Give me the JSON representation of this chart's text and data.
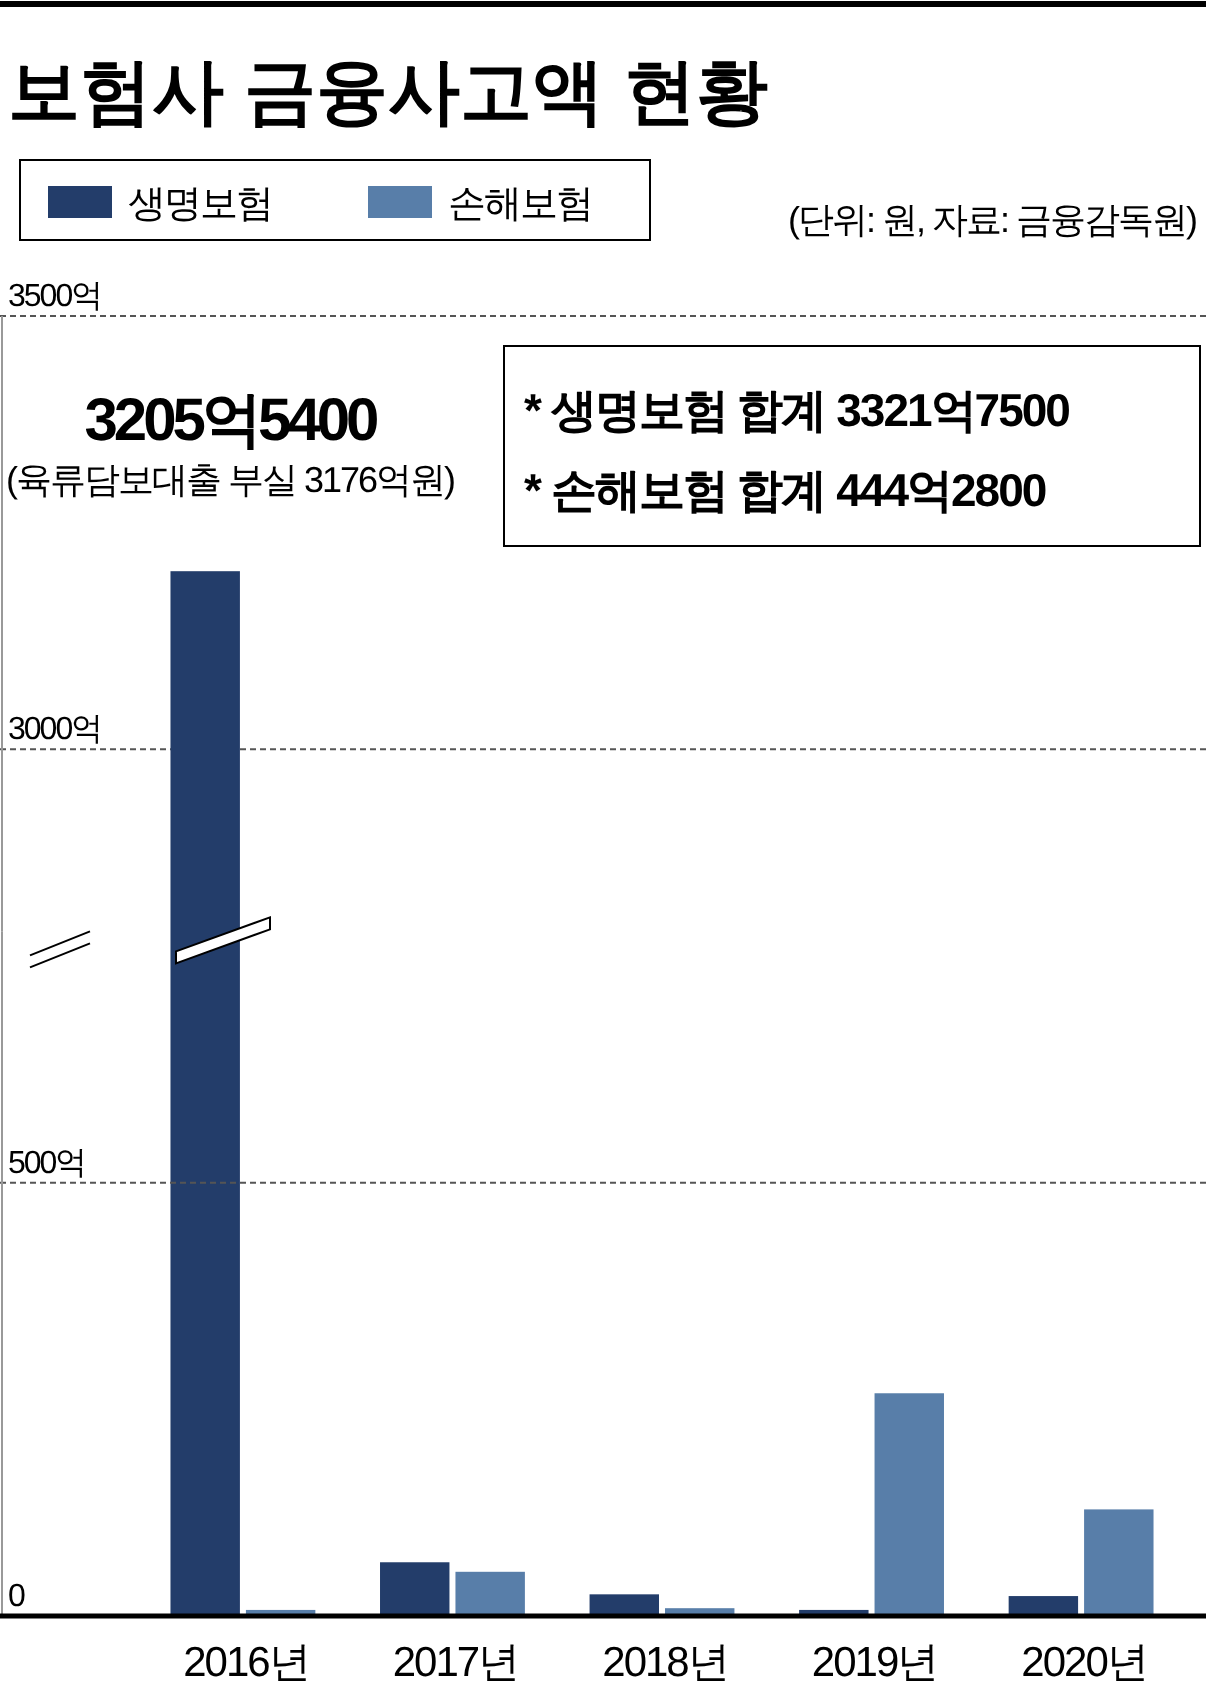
{
  "chart_data": [
    {
      "type": "bar",
      "title": "보험사 금융사고액 현황",
      "series": [
        {
          "name": "생명보험",
          "color": "#233d6a",
          "values": [
            3205.54,
            null,
            null,
            null,
            null
          ]
        },
        {
          "name": "손해보험",
          "color": "#587ea9",
          "values": [
            null,
            null,
            null,
            null,
            null
          ]
        }
      ],
      "ylim": [
        2790,
        3500
      ],
      "yticks": [
        {
          "value": 3000,
          "label": "3000억"
        },
        {
          "value": 3500,
          "label": "3500억"
        }
      ],
      "tick_labels": "y",
      "grid": "y",
      "legend": "top left",
      "annotations": [
        "3205억5400",
        "(육류담보대출 부실 3176억원)",
        "* 생명보험 합계 3321억7500",
        "* 손해보험 합계 444억2800",
        "(단위: 원, 자료: 금융감독원)"
      ]
    },
    {
      "type": "bar",
      "categories": [
        "2016년",
        "2017년",
        "2018년",
        "2019년",
        "2020년"
      ],
      "series": [
        {
          "color": "#233d6a",
          "values": [
            null,
            62,
            25,
            7,
            23
          ]
        },
        {
          "color": "#587ea9",
          "values": [
            7,
            51,
            9,
            257,
            123
          ]
        }
      ],
      "ylim": [
        0,
        790
      ],
      "yticks": [
        0,
        {
          "value": 500,
          "label": "500억"
        }
      ],
      "grid": "y"
    }
  ]
}
